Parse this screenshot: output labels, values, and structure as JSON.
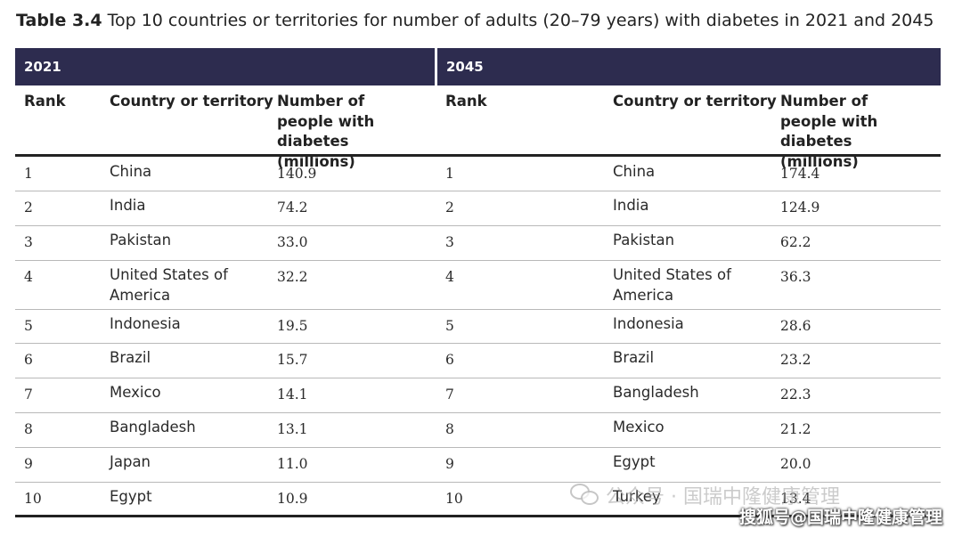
{
  "caption": {
    "label": "Table 3.4",
    "text": "Top 10 countries or territories for number of adults (20–79 years) with diabetes in 2021 and 2045"
  },
  "years": {
    "left": "2021",
    "right": "2045"
  },
  "headers": {
    "rank": "Rank",
    "country": "Country or territory",
    "number": "Number of people with diabetes (millions)"
  },
  "rows_2021": [
    {
      "rank": "1",
      "country": "China",
      "value": "140.9"
    },
    {
      "rank": "2",
      "country": "India",
      "value": "74.2"
    },
    {
      "rank": "3",
      "country": "Pakistan",
      "value": "33.0"
    },
    {
      "rank": "4",
      "country": "United States of America",
      "value": "32.2"
    },
    {
      "rank": "5",
      "country": "Indonesia",
      "value": "19.5"
    },
    {
      "rank": "6",
      "country": "Brazil",
      "value": "15.7"
    },
    {
      "rank": "7",
      "country": "Mexico",
      "value": "14.1"
    },
    {
      "rank": "8",
      "country": "Bangladesh",
      "value": "13.1"
    },
    {
      "rank": "9",
      "country": "Japan",
      "value": "11.0"
    },
    {
      "rank": "10",
      "country": "Egypt",
      "value": "10.9"
    }
  ],
  "rows_2045": [
    {
      "rank": "1",
      "country": "China",
      "value": "174.4"
    },
    {
      "rank": "2",
      "country": "India",
      "value": "124.9"
    },
    {
      "rank": "3",
      "country": "Pakistan",
      "value": "62.2"
    },
    {
      "rank": "4",
      "country": "United States of America",
      "value": "36.3"
    },
    {
      "rank": "5",
      "country": "Indonesia",
      "value": "28.6"
    },
    {
      "rank": "6",
      "country": "Brazil",
      "value": "23.2"
    },
    {
      "rank": "7",
      "country": "Bangladesh",
      "value": "22.3"
    },
    {
      "rank": "8",
      "country": "Mexico",
      "value": "21.2"
    },
    {
      "rank": "9",
      "country": "Egypt",
      "value": "20.0"
    },
    {
      "rank": "10",
      "country": "Turkey",
      "value": "13.4"
    }
  ],
  "watermarks": {
    "wechat_text": "公众号 · 国瑞中隆健康管理",
    "sohu_text": "搜狐号@国瑞中隆健康管理"
  }
}
